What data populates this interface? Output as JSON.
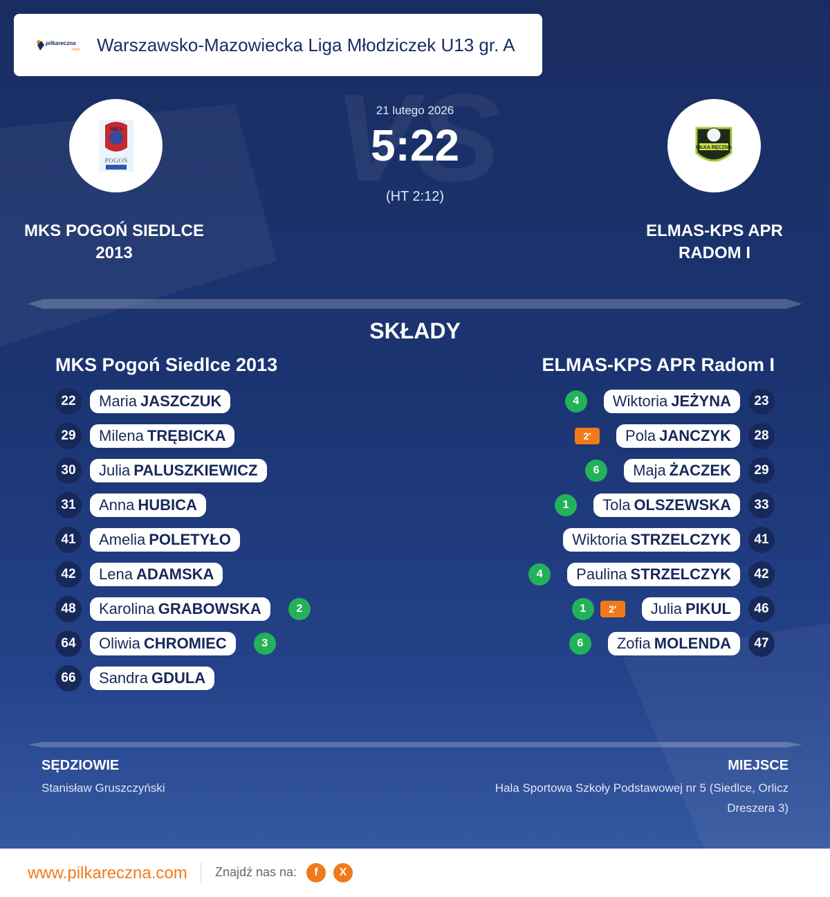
{
  "header": {
    "logo_text": "pilkareczna.com",
    "league": "Warszawsko-Mazowiecka Liga Młodziczek U13 gr. A"
  },
  "match": {
    "date": "21 lutego 2026",
    "score": "5:22",
    "halftime": "(HT 2:12)",
    "vs_watermark": "VS",
    "home_name": "MKS POGOŃ SIEDLCE 2013",
    "away_name": "ELMAS-KPS APR RADOM I"
  },
  "squads": {
    "title": "SKŁADY",
    "home_title": "MKS Pogoń Siedlce 2013",
    "away_title": "ELMAS-KPS APR Radom I",
    "home": [
      {
        "number": "22",
        "first": "Maria",
        "last": "JASZCZUK",
        "goals": null,
        "penalty": null
      },
      {
        "number": "29",
        "first": "Milena",
        "last": "TRĘBICKA",
        "goals": null,
        "penalty": null
      },
      {
        "number": "30",
        "first": "Julia",
        "last": "PALUSZKIEWICZ",
        "goals": null,
        "penalty": null
      },
      {
        "number": "31",
        "first": "Anna",
        "last": "HUBICA",
        "goals": null,
        "penalty": null
      },
      {
        "number": "41",
        "first": "Amelia",
        "last": "POLETYŁO",
        "goals": null,
        "penalty": null
      },
      {
        "number": "42",
        "first": "Lena",
        "last": "ADAMSKA",
        "goals": null,
        "penalty": null
      },
      {
        "number": "48",
        "first": "Karolina",
        "last": "GRABOWSKA",
        "goals": "2",
        "penalty": null
      },
      {
        "number": "64",
        "first": "Oliwia",
        "last": "CHROMIEC",
        "goals": "3",
        "penalty": null
      },
      {
        "number": "66",
        "first": "Sandra",
        "last": "GDULA",
        "goals": null,
        "penalty": null
      }
    ],
    "away": [
      {
        "number": "23",
        "first": "Wiktoria",
        "last": "JEŻYNA",
        "goals": "4",
        "penalty": null
      },
      {
        "number": "28",
        "first": "Pola",
        "last": "JANCZYK",
        "goals": null,
        "penalty": "2'"
      },
      {
        "number": "29",
        "first": "Maja",
        "last": "ŻACZEK",
        "goals": "6",
        "penalty": null
      },
      {
        "number": "33",
        "first": "Tola",
        "last": "OLSZEWSKA",
        "goals": "1",
        "penalty": null
      },
      {
        "number": "41",
        "first": "Wiktoria",
        "last": "STRZELCZYK",
        "goals": null,
        "penalty": null
      },
      {
        "number": "42",
        "first": "Paulina",
        "last": "STRZELCZYK",
        "goals": "4",
        "penalty": null
      },
      {
        "number": "46",
        "first": "Julia",
        "last": "PIKUL",
        "goals": "1",
        "penalty": "2'"
      },
      {
        "number": "47",
        "first": "Zofia",
        "last": "MOLENDA",
        "goals": "6",
        "penalty": null
      }
    ]
  },
  "officials": {
    "referees_label": "SĘDZIOWIE",
    "referees_value": "Stanisław Gruszczyński",
    "venue_label": "MIEJSCE",
    "venue_value": "Hala Sportowa Szkoły Podstawowej nr 5 (Siedlce, Orlicz Dreszera 3)"
  },
  "footer": {
    "site": "www.pilkareczna.com",
    "find_us": "Znajdź nas na:",
    "facebook_label": "f",
    "x_label": "X"
  },
  "colors": {
    "navy": "#1a2d62",
    "accent_orange": "#f07a1a",
    "goal_green": "#22b25a"
  }
}
